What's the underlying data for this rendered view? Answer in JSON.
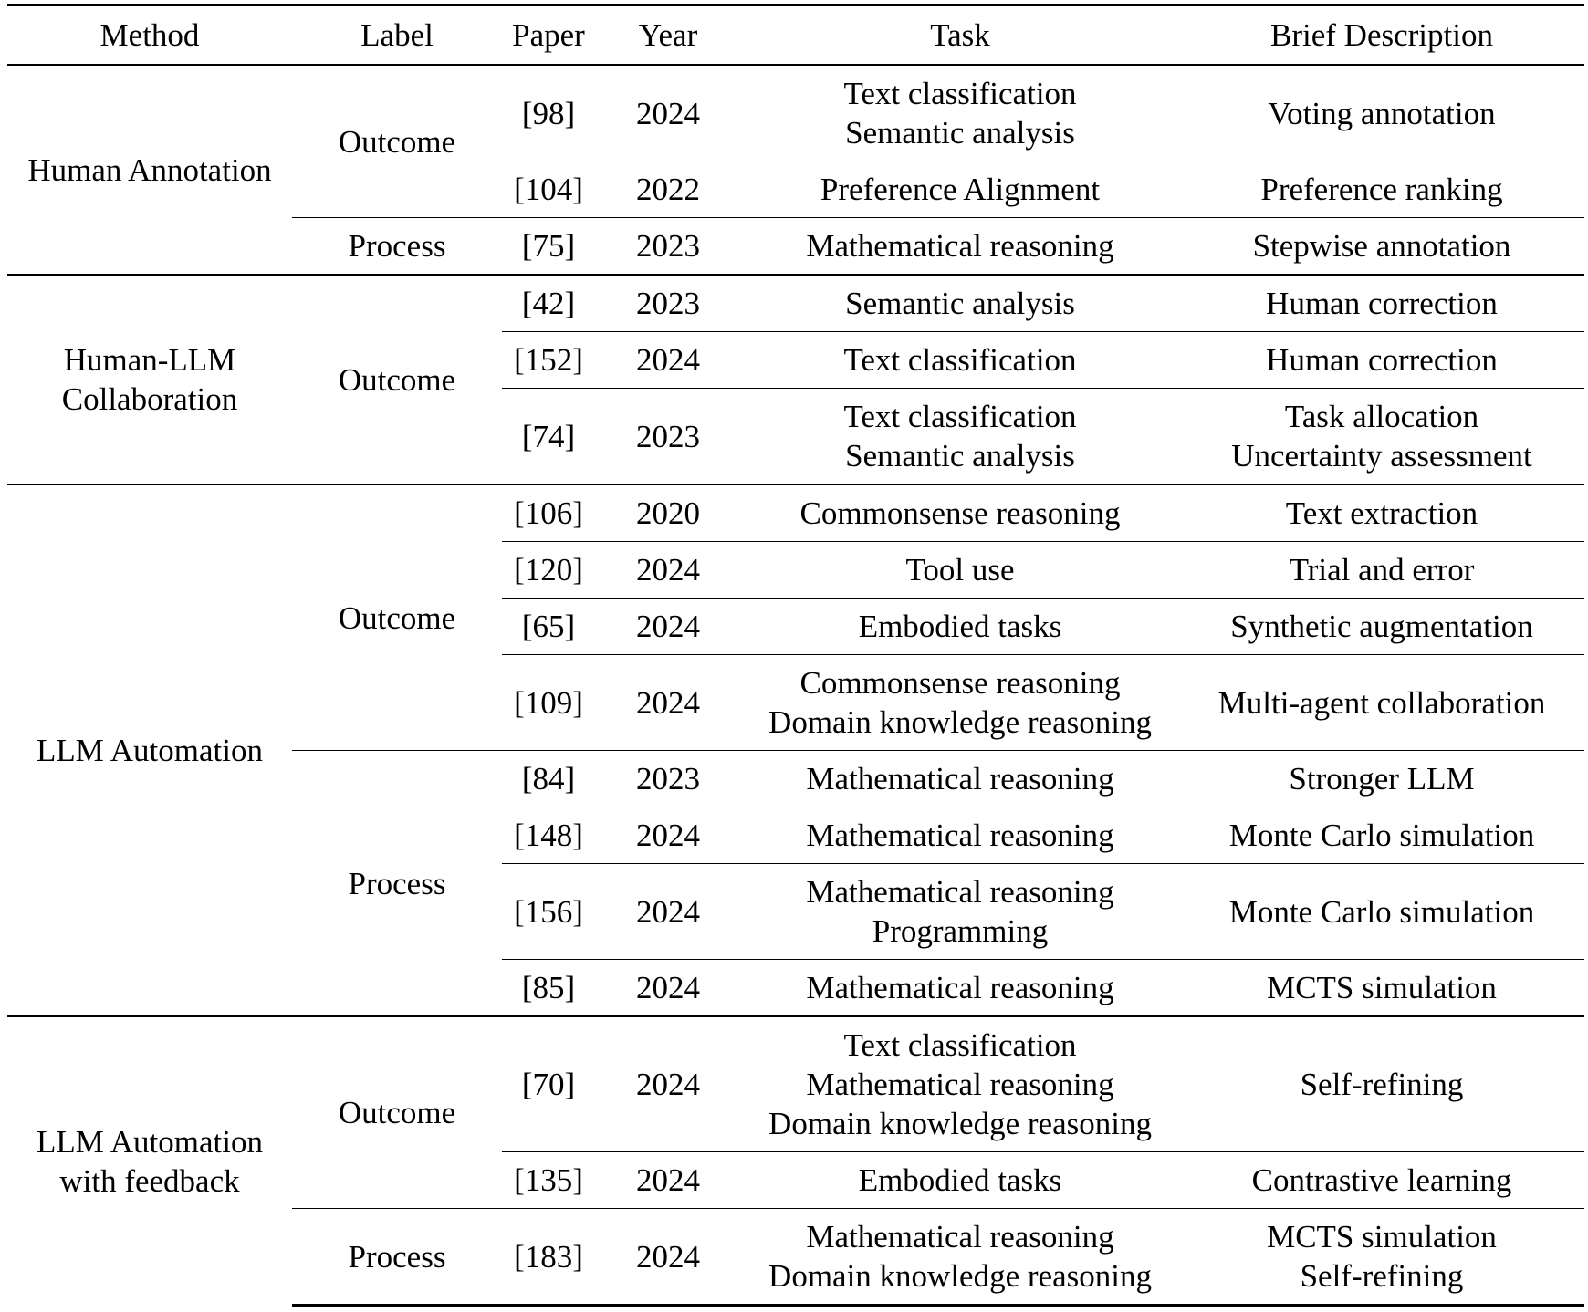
{
  "table": {
    "header": [
      "Method",
      "Label",
      "Paper",
      "Year",
      "Task",
      "Brief Description"
    ],
    "groups": [
      {
        "method": [
          "Human Annotation"
        ],
        "labels": [
          {
            "label": "Outcome",
            "entries": [
              {
                "paper": "[98]",
                "year": 2024,
                "task": [
                  "Text classification",
                  "Semantic analysis"
                ],
                "description": [
                  "Voting annotation"
                ]
              },
              {
                "paper": "[104]",
                "year": 2022,
                "task": [
                  "Preference Alignment"
                ],
                "description": [
                  "Preference ranking"
                ]
              }
            ]
          },
          {
            "label": "Process",
            "entries": [
              {
                "paper": "[75]",
                "year": 2023,
                "task": [
                  "Mathematical reasoning"
                ],
                "description": [
                  "Stepwise annotation"
                ]
              }
            ]
          }
        ]
      },
      {
        "method": [
          "Human-LLM",
          "Collaboration"
        ],
        "labels": [
          {
            "label": "Outcome",
            "entries": [
              {
                "paper": "[42]",
                "year": 2023,
                "task": [
                  "Semantic analysis"
                ],
                "description": [
                  "Human correction"
                ]
              },
              {
                "paper": "[152]",
                "year": 2024,
                "task": [
                  "Text classification"
                ],
                "description": [
                  "Human correction"
                ]
              },
              {
                "paper": "[74]",
                "year": 2023,
                "task": [
                  "Text classification",
                  "Semantic analysis"
                ],
                "description": [
                  "Task allocation",
                  "Uncertainty assessment"
                ]
              }
            ]
          }
        ]
      },
      {
        "method": [
          "LLM Automation"
        ],
        "labels": [
          {
            "label": "Outcome",
            "entries": [
              {
                "paper": "[106]",
                "year": 2020,
                "task": [
                  "Commonsense reasoning"
                ],
                "description": [
                  "Text extraction"
                ]
              },
              {
                "paper": "[120]",
                "year": 2024,
                "task": [
                  "Tool use"
                ],
                "description": [
                  "Trial and error"
                ]
              },
              {
                "paper": "[65]",
                "year": 2024,
                "task": [
                  "Embodied tasks"
                ],
                "description": [
                  "Synthetic augmentation"
                ]
              },
              {
                "paper": "[109]",
                "year": 2024,
                "task": [
                  "Commonsense reasoning",
                  "Domain knowledge reasoning"
                ],
                "description": [
                  "Multi-agent collaboration"
                ]
              }
            ]
          },
          {
            "label": "Process",
            "entries": [
              {
                "paper": "[84]",
                "year": 2023,
                "task": [
                  "Mathematical reasoning"
                ],
                "description": [
                  "Stronger LLM"
                ]
              },
              {
                "paper": "[148]",
                "year": 2024,
                "task": [
                  "Mathematical reasoning"
                ],
                "description": [
                  "Monte Carlo simulation"
                ]
              },
              {
                "paper": "[156]",
                "year": 2024,
                "task": [
                  "Mathematical reasoning",
                  "Programming"
                ],
                "description": [
                  "Monte Carlo simulation"
                ]
              },
              {
                "paper": "[85]",
                "year": 2024,
                "task": [
                  "Mathematical reasoning"
                ],
                "description": [
                  "MCTS simulation"
                ]
              }
            ]
          }
        ]
      },
      {
        "method": [
          "LLM Automation",
          "with feedback"
        ],
        "labels": [
          {
            "label": "Outcome",
            "entries": [
              {
                "paper": "[70]",
                "year": 2024,
                "task": [
                  "Text classification",
                  "Mathematical reasoning",
                  "Domain knowledge reasoning"
                ],
                "description": [
                  "Self-refining"
                ]
              },
              {
                "paper": "[135]",
                "year": 2024,
                "task": [
                  "Embodied tasks"
                ],
                "description": [
                  "Contrastive learning"
                ]
              }
            ]
          },
          {
            "label": "Process",
            "entries": [
              {
                "paper": "[183]",
                "year": 2024,
                "task": [
                  "Mathematical reasoning",
                  "Domain knowledge reasoning"
                ],
                "description": [
                  "MCTS simulation",
                  "Self-refining"
                ]
              }
            ]
          }
        ]
      }
    ]
  }
}
